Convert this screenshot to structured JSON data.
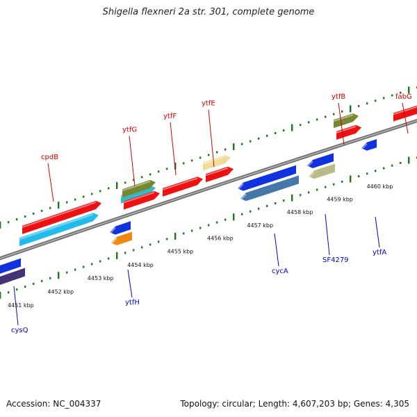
{
  "title": "Shigella flexneri 2a str. 301, complete genome",
  "footer": {
    "accession": "Accession: NC_004337",
    "summary": "Topology: circular; Length: 4,607,203 bp; Genes: 4,305"
  },
  "scale": {
    "tick_labels": [
      "4451 kbp",
      "4452 kbp",
      "4453 kbp",
      "4454 kbp",
      "4455 kbp",
      "4456 kbp",
      "4457 kbp",
      "4458 kbp",
      "4459 kbp",
      "4460 kbp"
    ]
  },
  "genes": {
    "forward": [
      {
        "name": "cpdB",
        "color": "#cc0000"
      },
      {
        "name": "ytfG",
        "color": "#cc0000"
      },
      {
        "name": "ytfF",
        "color": "#cc0000"
      },
      {
        "name": "ytfE",
        "color": "#cc0000"
      },
      {
        "name": "ytfB",
        "color": "#cc0000"
      },
      {
        "name": "fabG",
        "color": "#cc0000"
      }
    ],
    "reverse": [
      {
        "name": "cysQ",
        "color": "#0000cc"
      },
      {
        "name": "ytfH",
        "color": "#0000cc"
      },
      {
        "name": "cycA",
        "color": "#0000cc"
      },
      {
        "name": "SF4279",
        "color": "#0000cc"
      },
      {
        "name": "ytfA",
        "color": "#0000cc"
      }
    ]
  },
  "colors": {
    "backbone": "#8c8c8c",
    "dots": "#1a7a1a",
    "forward_label": "#cc0000",
    "reverse_label": "#0000cc",
    "cds": "#ee1111",
    "cds_reverse": "#1133dd",
    "cog_cyan": "#22bbee",
    "cog_teal": "#33bbcc",
    "cog_olive": "#778833",
    "cog_khaki": "#eedd99",
    "cog_steel": "#4477aa",
    "cog_tan": "#bbbb88",
    "cog_orange": "#ee8811",
    "cog_purple": "#443377"
  }
}
